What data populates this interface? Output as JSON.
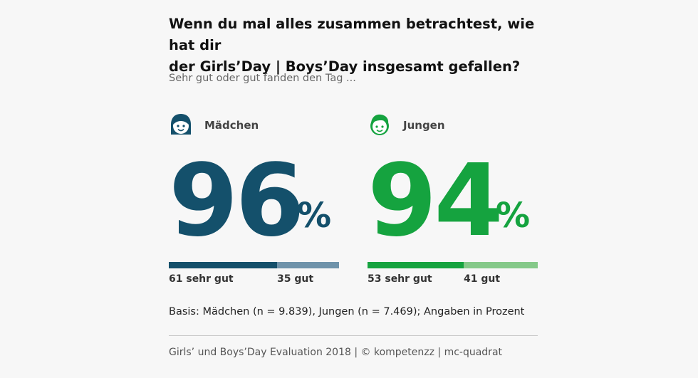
{
  "title_line1": "Wenn du mal alles zusammen betrachtest, wie hat dir",
  "title_line2": "der Girls’Day | Boys’Day insgesamt gefallen?",
  "subtitle": "Sehr gut oder gut fanden den Tag ...",
  "percent_sign": "%",
  "chart_data": {
    "type": "bar",
    "title": "Wenn du mal alles zusammen betrachtest, wie hat dir der Girls’Day | Boys’Day insgesamt gefallen?",
    "subtitle": "Sehr gut oder gut fanden den Tag ...",
    "groups": [
      {
        "name": "Mädchen",
        "total": 96,
        "total_label": "96",
        "segments": [
          {
            "label": "61 sehr gut",
            "value": 61,
            "color": "#14506b"
          },
          {
            "label": "35 gut",
            "value": 35,
            "color": "#6f93aa"
          }
        ],
        "color": "#14506b",
        "icon": "girl-face-icon"
      },
      {
        "name": "Jungen",
        "total": 94,
        "total_label": "94",
        "segments": [
          {
            "label": "53 sehr gut",
            "value": 53,
            "color": "#15a33f"
          },
          {
            "label": "41 gut",
            "value": 41,
            "color": "#85c989"
          }
        ],
        "color": "#15a33f",
        "icon": "boy-face-icon"
      }
    ],
    "unit": "%"
  },
  "basis": "Basis: Mädchen (n = 9.839), Jungen (n = 7.469); Angaben in Prozent",
  "source": "Girls’ und Boys’Day Evaluation 2018 | © kompetenzz | mc-quadrat"
}
